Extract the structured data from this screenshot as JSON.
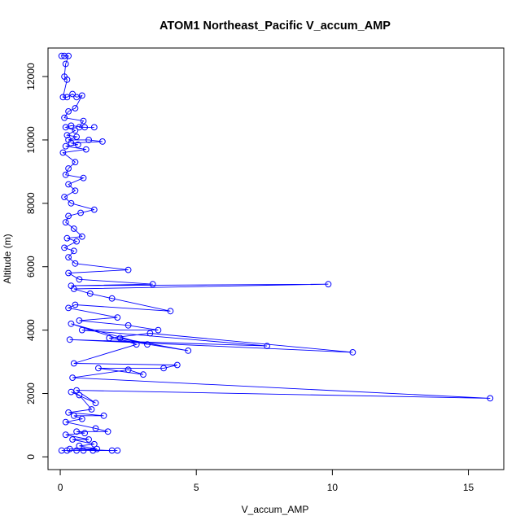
{
  "chart_data": {
    "type": "line",
    "title": "ATOM1 Northeast_Pacific V_accum_AMP",
    "xlabel": "V_accum_AMP",
    "ylabel": "Altitude (m)",
    "xlim": [
      -0.45,
      16.3
    ],
    "ylim": [
      -400,
      12900
    ],
    "xticks": [
      0,
      5,
      10,
      15
    ],
    "yticks": [
      0,
      2000,
      4000,
      6000,
      8000,
      10000,
      12000
    ],
    "grid": false,
    "legend": "none",
    "series": [
      {
        "color": "#0000ff",
        "marker": "open-circle",
        "points": [
          [
            0.05,
            12650
          ],
          [
            0.15,
            12650
          ],
          [
            0.3,
            12650
          ],
          [
            0.2,
            12400
          ],
          [
            0.15,
            12000
          ],
          [
            0.25,
            11900
          ],
          [
            0.1,
            11350
          ],
          [
            0.25,
            11350
          ],
          [
            0.45,
            11450
          ],
          [
            0.6,
            11350
          ],
          [
            0.8,
            11400
          ],
          [
            0.55,
            11000
          ],
          [
            0.3,
            10900
          ],
          [
            0.15,
            10700
          ],
          [
            0.85,
            10600
          ],
          [
            0.7,
            10400
          ],
          [
            1.25,
            10400
          ],
          [
            0.9,
            10400
          ],
          [
            0.4,
            10450
          ],
          [
            0.2,
            10400
          ],
          [
            0.55,
            10300
          ],
          [
            0.25,
            10150
          ],
          [
            0.6,
            10100
          ],
          [
            0.3,
            10000
          ],
          [
            1.05,
            10000
          ],
          [
            1.55,
            9950
          ],
          [
            0.4,
            9900
          ],
          [
            0.65,
            9850
          ],
          [
            0.2,
            9800
          ],
          [
            0.95,
            9700
          ],
          [
            0.1,
            9600
          ],
          [
            0.55,
            9300
          ],
          [
            0.3,
            9100
          ],
          [
            0.2,
            8900
          ],
          [
            0.85,
            8800
          ],
          [
            0.3,
            8600
          ],
          [
            0.55,
            8400
          ],
          [
            0.15,
            8200
          ],
          [
            0.4,
            8000
          ],
          [
            1.25,
            7800
          ],
          [
            0.75,
            7700
          ],
          [
            0.3,
            7600
          ],
          [
            0.2,
            7400
          ],
          [
            0.5,
            7200
          ],
          [
            0.8,
            6950
          ],
          [
            0.25,
            6900
          ],
          [
            0.6,
            6800
          ],
          [
            0.15,
            6600
          ],
          [
            0.5,
            6500
          ],
          [
            0.3,
            6300
          ],
          [
            0.55,
            6100
          ],
          [
            2.5,
            5900
          ],
          [
            0.3,
            5800
          ],
          [
            0.7,
            5600
          ],
          [
            3.4,
            5450
          ],
          [
            0.4,
            5400
          ],
          [
            9.85,
            5450
          ],
          [
            0.5,
            5300
          ],
          [
            1.1,
            5150
          ],
          [
            1.9,
            5000
          ],
          [
            4.05,
            4600
          ],
          [
            0.55,
            4800
          ],
          [
            0.3,
            4700
          ],
          [
            2.1,
            4400
          ],
          [
            0.7,
            4300
          ],
          [
            2.5,
            4150
          ],
          [
            3.6,
            4000
          ],
          [
            0.8,
            4000
          ],
          [
            7.6,
            3500
          ],
          [
            0.35,
            3700
          ],
          [
            10.75,
            3300
          ],
          [
            3.3,
            3900
          ],
          [
            1.8,
            3750
          ],
          [
            4.7,
            3350
          ],
          [
            2.2,
            3750
          ],
          [
            3.2,
            3550
          ],
          [
            0.4,
            4200
          ],
          [
            2.8,
            3550
          ],
          [
            0.5,
            2950
          ],
          [
            4.3,
            2900
          ],
          [
            3.8,
            2800
          ],
          [
            1.4,
            2800
          ],
          [
            3.05,
            2600
          ],
          [
            2.5,
            2750
          ],
          [
            0.45,
            2500
          ],
          [
            15.8,
            1850
          ],
          [
            0.6,
            2100
          ],
          [
            1.3,
            1700
          ],
          [
            0.4,
            2050
          ],
          [
            0.7,
            1950
          ],
          [
            1.15,
            1500
          ],
          [
            0.3,
            1400
          ],
          [
            1.6,
            1300
          ],
          [
            0.5,
            1300
          ],
          [
            0.8,
            1200
          ],
          [
            0.2,
            1100
          ],
          [
            1.3,
            900
          ],
          [
            1.75,
            800
          ],
          [
            0.6,
            800
          ],
          [
            0.9,
            750
          ],
          [
            0.2,
            700
          ],
          [
            1.05,
            550
          ],
          [
            0.45,
            550
          ],
          [
            1.25,
            400
          ],
          [
            0.7,
            350
          ],
          [
            1.35,
            250
          ],
          [
            0.35,
            250
          ],
          [
            1.9,
            200
          ],
          [
            2.1,
            200
          ],
          [
            0.6,
            200
          ],
          [
            0.85,
            200
          ],
          [
            0.25,
            200
          ],
          [
            0.05,
            200
          ],
          [
            1.2,
            200
          ]
        ]
      }
    ]
  }
}
